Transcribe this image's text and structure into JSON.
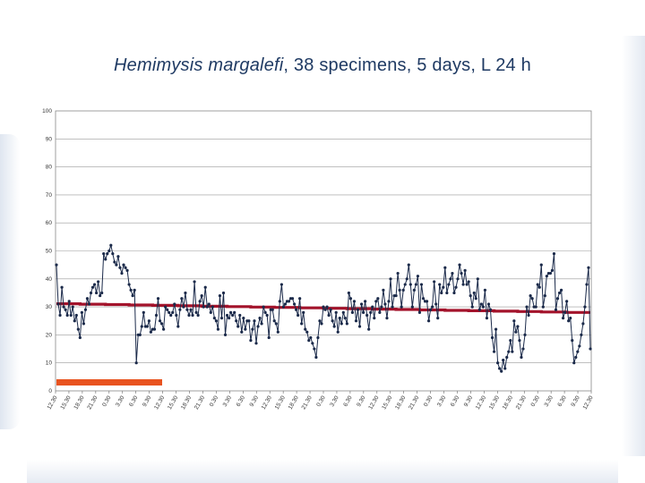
{
  "title": {
    "species": "Hemimysis margalefi",
    "rest": ", 38 specimens, 5 days, L 24 h"
  },
  "chart_data": {
    "type": "line",
    "title": "Hemimysis margalefi, 38 specimens, 5 days, L 24 h",
    "ylim": [
      0,
      100
    ],
    "yticks": [
      0,
      10,
      20,
      30,
      40,
      50,
      60,
      70,
      80,
      90,
      100
    ],
    "grid": true,
    "xticks": [
      "12.30",
      "15.30",
      "18.30",
      "21.30",
      "0.30",
      "3.30",
      "6.30",
      "9.30",
      "12.30",
      "15.30",
      "18.30",
      "21.30",
      "0.30",
      "3.30",
      "6.30",
      "9.30",
      "12.30",
      "15.30",
      "18.30",
      "21.30",
      "0.30",
      "3.30",
      "6.30",
      "9.30",
      "12.30",
      "15.30",
      "18.30",
      "21.30",
      "0.30",
      "3.30",
      "6.30",
      "9.30",
      "12.30",
      "15.30",
      "18.30",
      "21.30",
      "0.30",
      "3.30",
      "6.30",
      "9.30",
      "12.30"
    ],
    "activity": [
      45,
      31,
      27,
      37,
      30,
      29,
      27,
      32,
      27,
      30,
      25,
      27,
      22,
      19,
      28,
      24,
      29,
      33,
      31,
      35,
      37,
      38,
      35,
      39,
      34,
      35,
      49,
      47,
      49,
      50,
      52,
      49,
      46,
      45,
      48,
      44,
      42,
      45,
      44,
      43,
      38,
      36,
      34,
      36,
      10,
      20,
      20,
      23,
      28,
      23,
      23,
      25,
      21,
      22,
      22,
      27,
      33,
      25,
      24,
      22,
      30,
      29,
      28,
      27,
      28,
      31,
      27,
      23,
      29,
      33,
      30,
      35,
      29,
      27,
      29,
      27,
      39,
      28,
      27,
      32,
      34,
      30,
      37,
      30,
      31,
      28,
      30,
      26,
      25,
      22,
      34,
      26,
      35,
      20,
      27,
      26,
      28,
      27,
      28,
      25,
      23,
      27,
      21,
      26,
      22,
      25,
      25,
      18,
      22,
      25,
      17,
      23,
      26,
      24,
      30,
      28,
      27,
      19,
      29,
      29,
      25,
      24,
      21,
      32,
      38,
      30,
      31,
      32,
      32,
      33,
      33,
      31,
      29,
      27,
      33,
      24,
      28,
      22,
      21,
      18,
      19,
      17,
      15,
      12,
      19,
      25,
      24,
      30,
      29,
      30,
      27,
      29,
      25,
      23,
      28,
      21,
      26,
      24,
      28,
      26,
      24,
      35,
      33,
      28,
      32,
      25,
      29,
      23,
      31,
      28,
      32,
      27,
      22,
      28,
      30,
      26,
      32,
      33,
      28,
      30,
      36,
      31,
      26,
      32,
      40,
      30,
      34,
      34,
      42,
      36,
      30,
      36,
      38,
      40,
      45,
      38,
      30,
      36,
      38,
      41,
      28,
      38,
      33,
      32,
      32,
      25,
      29,
      30,
      39,
      31,
      26,
      38,
      35,
      37,
      44,
      35,
      38,
      40,
      42,
      35,
      37,
      40,
      45,
      42,
      38,
      43,
      38,
      39,
      34,
      30,
      35,
      33,
      40,
      29,
      31,
      30,
      36,
      26,
      31,
      29,
      19,
      14,
      22,
      10,
      8,
      7,
      11,
      8,
      12,
      14,
      18,
      14,
      25,
      21,
      23,
      18,
      12,
      15,
      20,
      30,
      27,
      34,
      33,
      30,
      30,
      38,
      37,
      45,
      30,
      34,
      41,
      42,
      42,
      43,
      49,
      29,
      33,
      35,
      36,
      26,
      28,
      32,
      25,
      26,
      18,
      10,
      12,
      14,
      16,
      20,
      24,
      30,
      38,
      44,
      15
    ]
  }
}
